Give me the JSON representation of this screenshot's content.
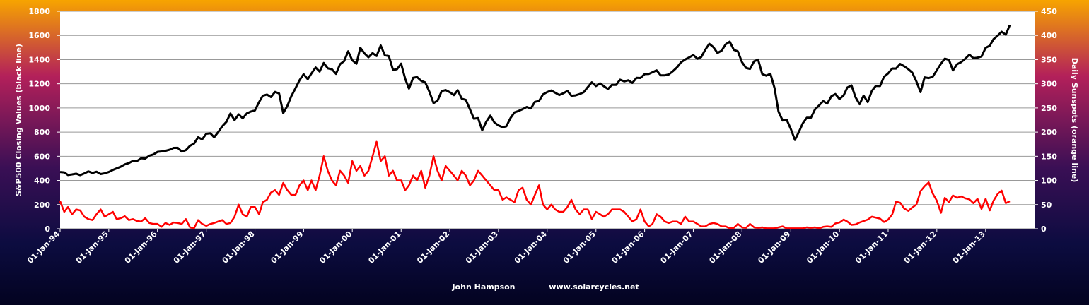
{
  "chart_data": {
    "type": "line",
    "y_label": "S&P500 Closing  Values (black line)",
    "y2_label": "Daily Sunspots  (orange line)",
    "annotations": [
      "John Hampson",
      "www.solarcycles.net"
    ],
    "grid": true,
    "x": [
      "1994-01-01",
      "1994-02-01",
      "1994-03-01",
      "1994-04-01",
      "1994-05-01",
      "1994-06-01",
      "1994-07-01",
      "1994-08-01",
      "1994-09-01",
      "1994-10-01",
      "1994-11-01",
      "1994-12-01",
      "1995-01-01",
      "1995-02-01",
      "1995-03-01",
      "1995-04-01",
      "1995-05-01",
      "1995-06-01",
      "1995-07-01",
      "1995-08-01",
      "1995-09-01",
      "1995-10-01",
      "1995-11-01",
      "1995-12-01",
      "1996-01-01",
      "1996-02-01",
      "1996-03-01",
      "1996-04-01",
      "1996-05-01",
      "1996-06-01",
      "1996-07-01",
      "1996-08-01",
      "1996-09-01",
      "1996-10-01",
      "1996-11-01",
      "1996-12-01",
      "1997-01-01",
      "1997-02-01",
      "1997-03-01",
      "1997-04-01",
      "1997-05-01",
      "1997-06-01",
      "1997-07-01",
      "1997-08-01",
      "1997-09-01",
      "1997-10-01",
      "1997-11-01",
      "1997-12-01",
      "1998-01-01",
      "1998-02-01",
      "1998-03-01",
      "1998-04-01",
      "1998-05-01",
      "1998-06-01",
      "1998-07-01",
      "1998-08-01",
      "1998-09-01",
      "1998-10-01",
      "1998-11-01",
      "1998-12-01",
      "1999-01-01",
      "1999-02-01",
      "1999-03-01",
      "1999-04-01",
      "1999-05-01",
      "1999-06-01",
      "1999-07-01",
      "1999-08-01",
      "1999-09-01",
      "1999-10-01",
      "1999-11-01",
      "1999-12-01",
      "2000-01-01",
      "2000-02-01",
      "2000-03-01",
      "2000-04-01",
      "2000-05-01",
      "2000-06-01",
      "2000-07-01",
      "2000-08-01",
      "2000-09-01",
      "2000-10-01",
      "2000-11-01",
      "2000-12-01",
      "2001-01-01",
      "2001-02-01",
      "2001-03-01",
      "2001-04-01",
      "2001-05-01",
      "2001-06-01",
      "2001-07-01",
      "2001-08-01",
      "2001-09-01",
      "2001-10-01",
      "2001-11-01",
      "2001-12-01",
      "2002-01-01",
      "2002-02-01",
      "2002-03-01",
      "2002-04-01",
      "2002-05-01",
      "2002-06-01",
      "2002-07-01",
      "2002-08-01",
      "2002-09-01",
      "2002-10-01",
      "2002-11-01",
      "2002-12-01",
      "2003-01-01",
      "2003-02-01",
      "2003-03-01",
      "2003-04-01",
      "2003-05-01",
      "2003-06-01",
      "2003-07-01",
      "2003-08-01",
      "2003-09-01",
      "2003-10-01",
      "2003-11-01",
      "2003-12-01",
      "2004-01-01",
      "2004-02-01",
      "2004-03-01",
      "2004-04-01",
      "2004-05-01",
      "2004-06-01",
      "2004-07-01",
      "2004-08-01",
      "2004-09-01",
      "2004-10-01",
      "2004-11-01",
      "2004-12-01",
      "2005-01-01",
      "2005-02-01",
      "2005-03-01",
      "2005-04-01",
      "2005-05-01",
      "2005-06-01",
      "2005-07-01",
      "2005-08-01",
      "2005-09-01",
      "2005-10-01",
      "2005-11-01",
      "2005-12-01",
      "2006-01-01",
      "2006-02-01",
      "2006-03-01",
      "2006-04-01",
      "2006-05-01",
      "2006-06-01",
      "2006-07-01",
      "2006-08-01",
      "2006-09-01",
      "2006-10-01",
      "2006-11-01",
      "2006-12-01",
      "2007-01-01",
      "2007-02-01",
      "2007-03-01",
      "2007-04-01",
      "2007-05-01",
      "2007-06-01",
      "2007-07-01",
      "2007-08-01",
      "2007-09-01",
      "2007-10-01",
      "2007-11-01",
      "2007-12-01",
      "2008-01-01",
      "2008-02-01",
      "2008-03-01",
      "2008-04-01",
      "2008-05-01",
      "2008-06-01",
      "2008-07-01",
      "2008-08-01",
      "2008-09-01",
      "2008-10-01",
      "2008-11-01",
      "2008-12-01",
      "2009-01-01",
      "2009-02-01",
      "2009-03-01",
      "2009-04-01",
      "2009-05-01",
      "2009-06-01",
      "2009-07-01",
      "2009-08-01",
      "2009-09-01",
      "2009-10-01",
      "2009-11-01",
      "2009-12-01",
      "2010-01-01",
      "2010-02-01",
      "2010-03-01",
      "2010-04-01",
      "2010-05-01",
      "2010-06-01",
      "2010-07-01",
      "2010-08-01",
      "2010-09-01",
      "2010-10-01",
      "2010-11-01",
      "2010-12-01",
      "2011-01-01",
      "2011-02-01",
      "2011-03-01",
      "2011-04-01",
      "2011-05-01",
      "2011-06-01",
      "2011-07-01",
      "2011-08-01",
      "2011-09-01",
      "2011-10-01",
      "2011-11-01",
      "2011-12-01",
      "2012-01-01",
      "2012-02-01",
      "2012-03-01",
      "2012-04-01",
      "2012-05-01",
      "2012-06-01",
      "2012-07-01",
      "2012-08-01",
      "2012-09-01",
      "2012-10-01",
      "2012-11-01",
      "2012-12-01",
      "2013-01-01",
      "2013-02-01",
      "2013-03-01",
      "2013-04-01",
      "2013-05-01",
      "2013-06-01",
      "2013-07-01"
    ],
    "series": [
      {
        "name": "S&P500",
        "color": "#000000",
        "axis": "y",
        "values": [
          470,
          467,
          445,
          450,
          456,
          444,
          458,
          475,
          462,
          472,
          453,
          459,
          470,
          487,
          500,
          514,
          533,
          544,
          562,
          561,
          584,
          581,
          605,
          615,
          636,
          640,
          645,
          654,
          669,
          670,
          639,
          651,
          687,
          705,
          757,
          740,
          786,
          790,
          757,
          801,
          848,
          885,
          954,
          899,
          947,
          914,
          955,
          970,
          980,
          1049,
          1101,
          1111,
          1090,
          1133,
          1120,
          957,
          1017,
          1098,
          1163,
          1229,
          1279,
          1238,
          1286,
          1335,
          1301,
          1372,
          1328,
          1320,
          1282,
          1362,
          1388,
          1469,
          1394,
          1366,
          1498,
          1452,
          1420,
          1454,
          1430,
          1517,
          1436,
          1429,
          1315,
          1320,
          1366,
          1240,
          1160,
          1249,
          1255,
          1224,
          1211,
          1134,
          1040,
          1060,
          1139,
          1148,
          1130,
          1106,
          1147,
          1076,
          1067,
          989,
          911,
          916,
          815,
          885,
          936,
          880,
          855,
          841,
          848,
          916,
          963,
          975,
          990,
          1008,
          996,
          1050,
          1058,
          1112,
          1131,
          1145,
          1126,
          1107,
          1121,
          1141,
          1101,
          1104,
          1115,
          1130,
          1173,
          1212,
          1181,
          1204,
          1180,
          1157,
          1191,
          1191,
          1234,
          1220,
          1229,
          1207,
          1249,
          1248,
          1280,
          1281,
          1295,
          1311,
          1270,
          1270,
          1277,
          1304,
          1336,
          1378,
          1401,
          1418,
          1438,
          1407,
          1421,
          1482,
          1531,
          1503,
          1455,
          1474,
          1527,
          1549,
          1481,
          1468,
          1379,
          1331,
          1323,
          1386,
          1400,
          1280,
          1267,
          1283,
          1165,
          969,
          896,
          903,
          826,
          735,
          798,
          873,
          919,
          919,
          987,
          1021,
          1057,
          1036,
          1096,
          1115,
          1074,
          1104,
          1169,
          1187,
          1089,
          1031,
          1102,
          1049,
          1141,
          1183,
          1181,
          1258,
          1286,
          1327,
          1326,
          1364,
          1345,
          1321,
          1292,
          1219,
          1131,
          1253,
          1247,
          1258,
          1312,
          1366,
          1408,
          1398,
          1310,
          1362,
          1379,
          1407,
          1441,
          1412,
          1416,
          1426,
          1498,
          1515,
          1569,
          1598,
          1631,
          1606,
          1686
        ]
      },
      {
        "name": "Daily Sunspots",
        "color": "#ff0000",
        "axis": "y2",
        "values": [
          57,
          35,
          45,
          30,
          40,
          38,
          25,
          20,
          18,
          30,
          40,
          25,
          30,
          35,
          20,
          22,
          26,
          18,
          20,
          16,
          15,
          22,
          12,
          10,
          10,
          4,
          12,
          8,
          13,
          12,
          10,
          20,
          3,
          1,
          18,
          10,
          6,
          10,
          12,
          15,
          18,
          10,
          12,
          25,
          50,
          30,
          25,
          45,
          45,
          30,
          55,
          60,
          75,
          80,
          70,
          95,
          80,
          70,
          70,
          90,
          100,
          80,
          100,
          80,
          110,
          150,
          120,
          100,
          90,
          120,
          110,
          95,
          140,
          120,
          130,
          110,
          120,
          150,
          180,
          140,
          150,
          110,
          120,
          100,
          100,
          80,
          90,
          110,
          100,
          120,
          85,
          110,
          150,
          120,
          100,
          130,
          120,
          110,
          100,
          120,
          110,
          90,
          100,
          120,
          110,
          100,
          90,
          80,
          80,
          60,
          65,
          60,
          55,
          80,
          85,
          60,
          50,
          70,
          90,
          50,
          40,
          50,
          40,
          35,
          35,
          45,
          60,
          40,
          30,
          40,
          40,
          20,
          35,
          30,
          25,
          30,
          40,
          40,
          40,
          35,
          25,
          15,
          20,
          40,
          15,
          5,
          10,
          30,
          25,
          15,
          12,
          15,
          15,
          10,
          25,
          15,
          15,
          10,
          5,
          5,
          10,
          12,
          10,
          5,
          5,
          1,
          2,
          10,
          3,
          2,
          10,
          3,
          2,
          3,
          1,
          1,
          1,
          3,
          5,
          1,
          1,
          1,
          1,
          1,
          3,
          2,
          3,
          1,
          4,
          5,
          4,
          11,
          13,
          19,
          15,
          8,
          9,
          13,
          16,
          19,
          25,
          23,
          21,
          14,
          19,
          30,
          56,
          54,
          42,
          37,
          44,
          50,
          78,
          88,
          96,
          73,
          58,
          33,
          64,
          55,
          69,
          64,
          67,
          63,
          61,
          53,
          62,
          41,
          62,
          38,
          58,
          72,
          79,
          53,
          57
        ]
      }
    ],
    "xlim": [
      "1994-01-01",
      "2014-01-08"
    ],
    "xticks": [
      {
        "value": "1994-01-01",
        "label": "01-Jan-94"
      },
      {
        "value": "1995-01-01",
        "label": "01-Jan-95"
      },
      {
        "value": "1996-01-01",
        "label": "01-Jan-96"
      },
      {
        "value": "1997-01-01",
        "label": "01-Jan-97"
      },
      {
        "value": "1998-01-01",
        "label": "01-Jan-98"
      },
      {
        "value": "1999-01-01",
        "label": "01-Jan-99"
      },
      {
        "value": "2000-01-01",
        "label": "01-Jan-00"
      },
      {
        "value": "2001-01-01",
        "label": "01-Jan-01"
      },
      {
        "value": "2002-01-01",
        "label": "01-Jan-02"
      },
      {
        "value": "2003-01-01",
        "label": "01-Jan-03"
      },
      {
        "value": "2004-01-01",
        "label": "01-Jan-04"
      },
      {
        "value": "2005-01-01",
        "label": "01-Jan-05"
      },
      {
        "value": "2006-01-01",
        "label": "01-Jan-06"
      },
      {
        "value": "2007-01-01",
        "label": "01-Jan-07"
      },
      {
        "value": "2008-01-01",
        "label": "01-Jan-08"
      },
      {
        "value": "2009-01-01",
        "label": "01-Jan-09"
      },
      {
        "value": "2010-01-01",
        "label": "01-Jan-10"
      },
      {
        "value": "2011-01-01",
        "label": "01-Jan-11"
      },
      {
        "value": "2012-01-01",
        "label": "01-Jan-12"
      },
      {
        "value": "2013-01-01",
        "label": "01-Jan-13"
      }
    ],
    "ylim": [
      0,
      1800
    ],
    "yticks": [
      0,
      200,
      400,
      600,
      800,
      1000,
      1200,
      1400,
      1600,
      1800
    ],
    "y2lim": [
      0,
      450
    ],
    "y2ticks": [
      0,
      50,
      100,
      150,
      200,
      250,
      300,
      350,
      400,
      450
    ]
  }
}
